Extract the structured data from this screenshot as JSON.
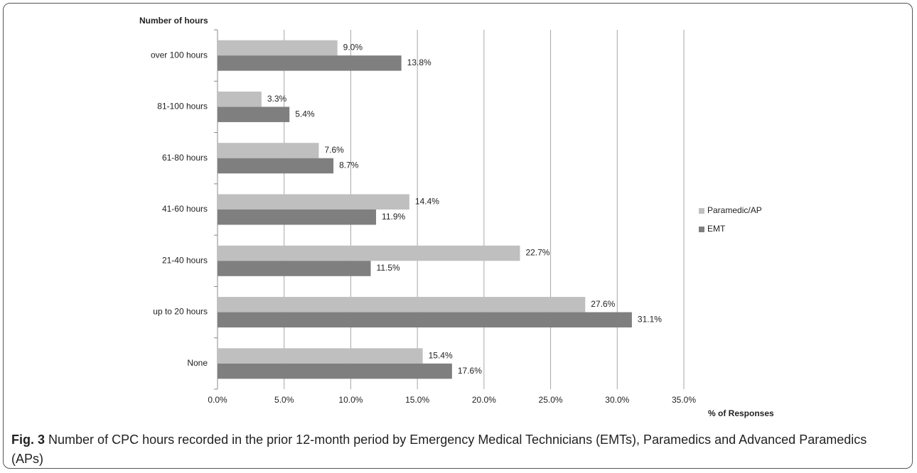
{
  "chart_data": {
    "type": "hbar",
    "y_axis_title": "Number of hours",
    "x_axis_title": "% of Responses",
    "categories": [
      "over 100 hours",
      "81-100 hours",
      "61-80 hours",
      "41-60 hours",
      "21-40 hours",
      "up to 20 hours",
      "None"
    ],
    "series": [
      {
        "name": "Paramedic/AP",
        "color": "#bfbfbf",
        "values": [
          9.0,
          3.3,
          7.6,
          14.4,
          22.7,
          27.6,
          15.4
        ],
        "value_labels": [
          "9.0%",
          "3.3%",
          "7.6%",
          "14.4%",
          "22.7%",
          "27.6%",
          "15.4%"
        ]
      },
      {
        "name": "EMT",
        "color": "#7f7f7f",
        "values": [
          13.8,
          5.4,
          8.7,
          11.9,
          11.5,
          31.1,
          17.6
        ],
        "value_labels": [
          "13.8%",
          "5.4%",
          "8.7%",
          "11.9%",
          "11.5%",
          "31.1%",
          "17.6%"
        ]
      }
    ],
    "xlim": [
      0,
      35
    ],
    "xticks": [
      {
        "value": 0,
        "label": "0.0%"
      },
      {
        "value": 5,
        "label": "5.0%"
      },
      {
        "value": 10,
        "label": "10.0%"
      },
      {
        "value": 15,
        "label": "15.0%"
      },
      {
        "value": 20,
        "label": "20.0%"
      },
      {
        "value": 25,
        "label": "25.0%"
      },
      {
        "value": 30,
        "label": "30.0%"
      },
      {
        "value": 35,
        "label": "35.0%"
      }
    ],
    "grid": true,
    "legend": "right",
    "caption_label": "Fig. 3",
    "caption": "Number of CPC hours recorded in the prior 12-month period by Emergency Medical Technicians (EMTs), Paramedics and Advanced Paramedics (APs)"
  }
}
